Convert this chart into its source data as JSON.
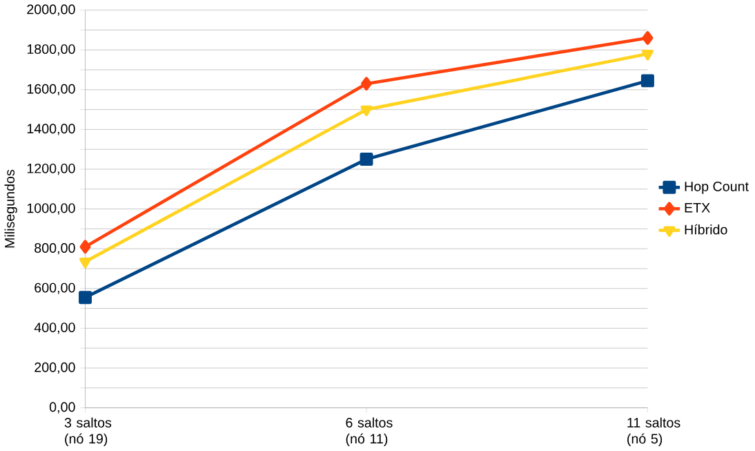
{
  "chart_data": {
    "type": "line",
    "ylabel": "Milisegundos",
    "categories": [
      "3 saltos (nó 19)",
      "6 saltos (nó 11)",
      "11 saltos (nó 5)"
    ],
    "series": [
      {
        "name": "Hop Count",
        "color": "#004586",
        "marker": "square",
        "values": [
          555,
          1250,
          1645
        ]
      },
      {
        "name": "ETX",
        "color": "#ff420e",
        "marker": "diamond",
        "values": [
          810,
          1630,
          1860
        ]
      },
      {
        "name": "Híbrido",
        "color": "#ffd320",
        "marker": "triangle",
        "values": [
          735,
          1500,
          1780
        ]
      }
    ],
    "ylim": [
      0,
      2000
    ],
    "yticks": [
      {
        "value": 0,
        "label": "0,00"
      },
      {
        "value": 100,
        "label": null
      },
      {
        "value": 200,
        "label": "200,00"
      },
      {
        "value": 300,
        "label": null
      },
      {
        "value": 400,
        "label": "400,00"
      },
      {
        "value": 500,
        "label": null
      },
      {
        "value": 600,
        "label": "600,00"
      },
      {
        "value": 700,
        "label": null
      },
      {
        "value": 800,
        "label": "800,00"
      },
      {
        "value": 900,
        "label": null
      },
      {
        "value": 1000,
        "label": "1000,00"
      },
      {
        "value": 1100,
        "label": null
      },
      {
        "value": 1200,
        "label": "1200,00"
      },
      {
        "value": 1300,
        "label": null
      },
      {
        "value": 1400,
        "label": "1400,00"
      },
      {
        "value": 1500,
        "label": null
      },
      {
        "value": 1600,
        "label": "1600,00"
      },
      {
        "value": 1700,
        "label": null
      },
      {
        "value": 1800,
        "label": "1800,00"
      },
      {
        "value": 1900,
        "label": null
      },
      {
        "value": 2000,
        "label": "2000,00"
      }
    ],
    "grid": "y",
    "legend": "right",
    "line_style": "solid"
  }
}
